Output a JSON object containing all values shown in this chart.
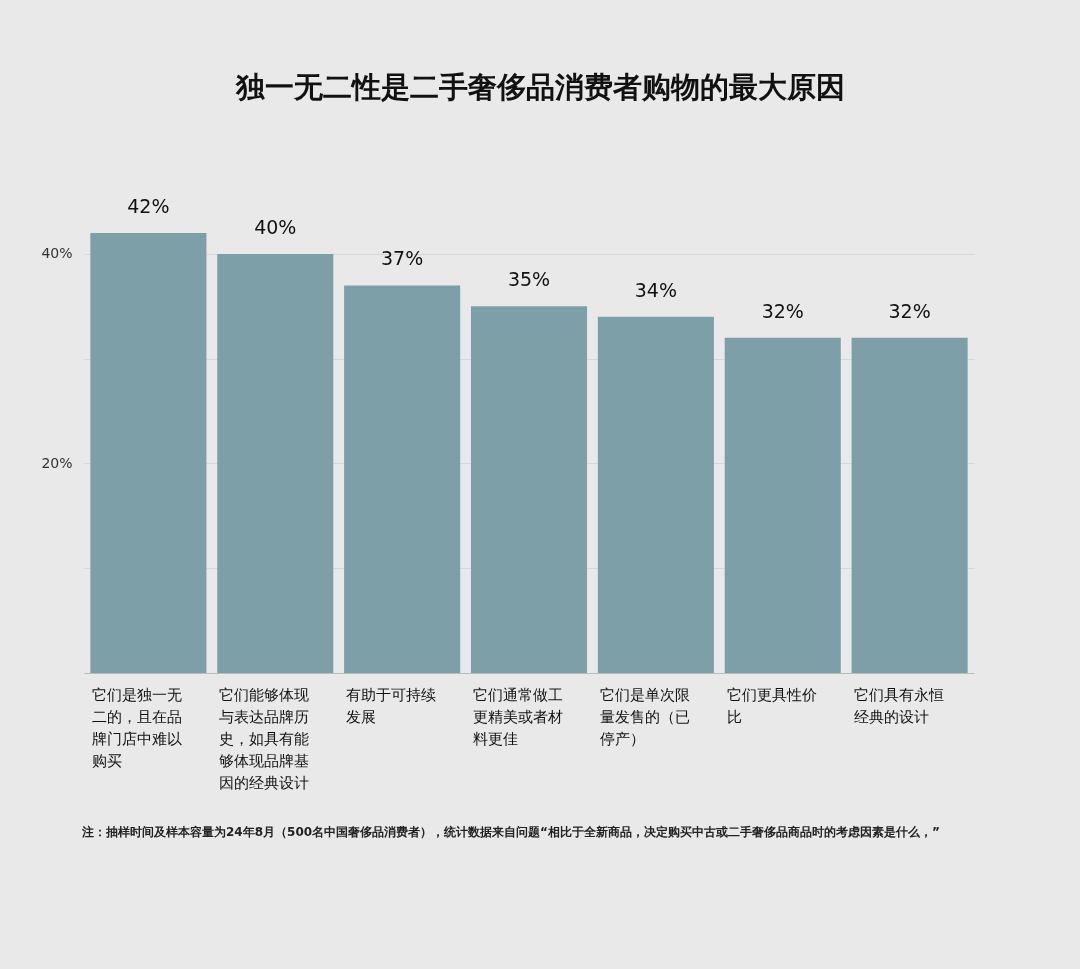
{
  "chart_data": {
    "type": "bar",
    "title": "独一无二性是二手奢侈品消费者购物的最大原因",
    "categories": [
      "它们是独一无二的，且在品牌门店中难以购买",
      "它们能够体现与表达品牌历史，如具有能够体现品牌基因的经典设计",
      "有助于可持续发展",
      "它们通常做工更精美或者材料更佳",
      "它们是单次限量发售的（已停产）",
      "它们更具性价比",
      "它们具有永恒经典的设计"
    ],
    "values": [
      42,
      40,
      37,
      35,
      34,
      32,
      32
    ],
    "value_labels": [
      "42%",
      "40%",
      "37%",
      "35%",
      "34%",
      "32%",
      "32%"
    ],
    "color": "#7da0a8",
    "ylim": [
      0,
      42
    ],
    "yticks": [
      {
        "value": 0,
        "label": null
      },
      {
        "value": 10,
        "label": null
      },
      {
        "value": 20,
        "label": "20%"
      },
      {
        "value": 30,
        "label": null
      },
      {
        "value": 40,
        "label": "40%"
      }
    ],
    "grid": "y",
    "annotations": [
      "注：抽样时间及样本容量为24年8月（500名中国奢侈品消费者），统计数据来自问题“相比于全新商品，决定购买中古或二手奢侈品商品时的考虑因素是什么，”"
    ]
  }
}
